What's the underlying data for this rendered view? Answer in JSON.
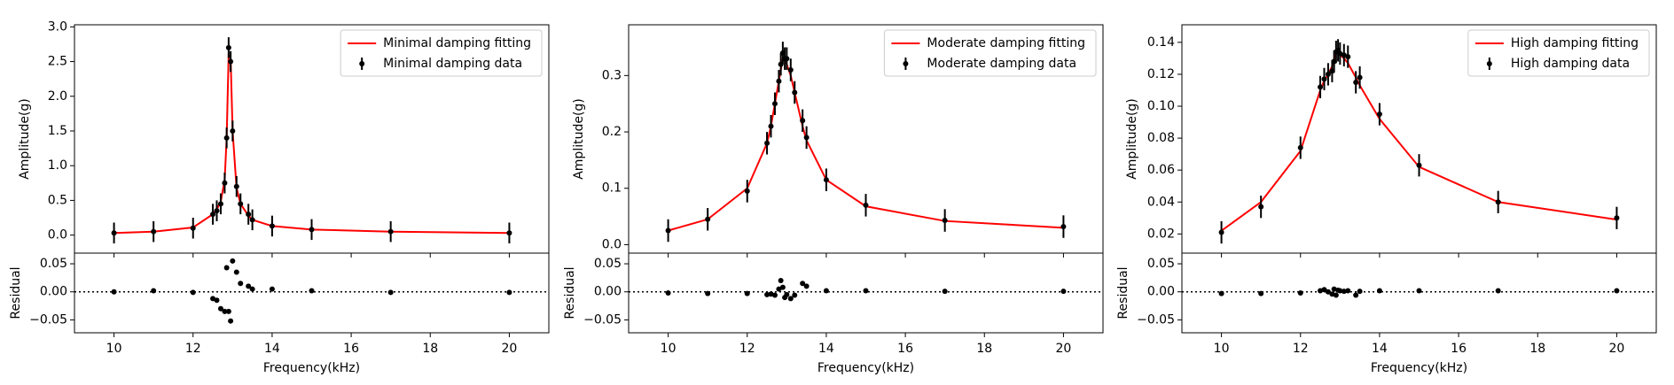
{
  "chart_data": [
    {
      "type": "errorbar",
      "xlabel": "Frequency(kHz)",
      "ylabel": "Amplitude(g)",
      "legend": "upper right",
      "x": [
        10,
        11,
        12,
        12.5,
        12.6,
        12.7,
        12.8,
        12.85,
        12.9,
        12.95,
        13.0,
        13.1,
        13.2,
        13.4,
        13.5,
        14,
        15,
        17,
        20
      ],
      "xlim": [
        9,
        21
      ],
      "xticks": [
        10,
        12,
        14,
        16,
        18,
        20
      ],
      "ylim": [
        -0.26,
        3.03
      ],
      "yticks": [
        {
          "value": 0,
          "label": "0.0"
        },
        {
          "value": 0.5,
          "label": "0.5"
        },
        {
          "value": 1,
          "label": "1.0"
        },
        {
          "value": 1.5,
          "label": "1.5"
        },
        {
          "value": 2,
          "label": "2.0"
        },
        {
          "value": 2.5,
          "label": "2.5"
        },
        {
          "value": 3,
          "label": "3.0"
        }
      ],
      "series": [
        {
          "name": "Minimal damping fitting",
          "color": "#ff0000",
          "values": [
            0.03,
            0.05,
            0.11,
            0.3,
            0.37,
            0.48,
            0.8,
            1.4,
            2.6,
            2.55,
            1.5,
            0.68,
            0.45,
            0.28,
            0.22,
            0.13,
            0.08,
            0.05,
            0.03
          ]
        },
        {
          "name": "Minimal damping data",
          "color": "#000000",
          "values": [
            0.03,
            0.05,
            0.1,
            0.3,
            0.35,
            0.45,
            0.75,
            1.4,
            2.7,
            2.5,
            1.5,
            0.7,
            0.45,
            0.3,
            0.22,
            0.13,
            0.08,
            0.05,
            0.03
          ],
          "errors": [
            0.15,
            0.15,
            0.15,
            0.15,
            0.15,
            0.15,
            0.15,
            0.15,
            0.15,
            0.15,
            0.15,
            0.15,
            0.15,
            0.15,
            0.15,
            0.15,
            0.15,
            0.15,
            0.15
          ]
        }
      ],
      "residual": {
        "ylabel": "Residual",
        "ylim": [
          -0.073,
          0.069
        ],
        "yticks": [
          {
            "value": -0.05,
            "label": "−0.05"
          },
          {
            "value": 0,
            "label": "0.00"
          },
          {
            "value": 0.05,
            "label": "0.05"
          }
        ],
        "values": [
          0,
          0.002,
          -0.001,
          -0.012,
          -0.015,
          -0.03,
          -0.035,
          0.043,
          -0.035,
          -0.052,
          0.055,
          0.035,
          0.015,
          0.01,
          0.005,
          0.005,
          0.002,
          -0.001,
          -0.001
        ]
      }
    },
    {
      "type": "errorbar",
      "xlabel": "Frequency(kHz)",
      "ylabel": "Amplitude(g)",
      "legend": "upper right",
      "x": [
        10,
        11,
        12,
        12.5,
        12.6,
        12.7,
        12.8,
        12.85,
        12.9,
        12.95,
        13.0,
        13.1,
        13.2,
        13.4,
        13.5,
        14,
        15,
        17,
        20
      ],
      "xlim": [
        9,
        21
      ],
      "xticks": [
        10,
        12,
        14,
        16,
        18,
        20
      ],
      "ylim": [
        -0.015,
        0.39
      ],
      "yticks": [
        {
          "value": 0,
          "label": "0.0"
        },
        {
          "value": 0.1,
          "label": "0.1"
        },
        {
          "value": 0.2,
          "label": "0.2"
        },
        {
          "value": 0.3,
          "label": "0.3"
        }
      ],
      "series": [
        {
          "name": "Moderate damping fitting",
          "color": "#ff0000",
          "values": [
            0.025,
            0.045,
            0.1,
            0.18,
            0.21,
            0.25,
            0.29,
            0.31,
            0.33,
            0.33,
            0.32,
            0.3,
            0.27,
            0.21,
            0.185,
            0.115,
            0.068,
            0.042,
            0.03
          ]
        },
        {
          "name": "Moderate damping data",
          "color": "#000000",
          "values": [
            0.025,
            0.045,
            0.095,
            0.18,
            0.21,
            0.25,
            0.29,
            0.32,
            0.34,
            0.33,
            0.33,
            0.31,
            0.27,
            0.22,
            0.19,
            0.115,
            0.07,
            0.043,
            0.032
          ],
          "errors": [
            0.02,
            0.02,
            0.02,
            0.02,
            0.02,
            0.02,
            0.02,
            0.02,
            0.02,
            0.02,
            0.02,
            0.02,
            0.02,
            0.02,
            0.02,
            0.02,
            0.02,
            0.02,
            0.02
          ]
        }
      ],
      "residual": {
        "ylabel": "Residual",
        "ylim": [
          -0.073,
          0.069
        ],
        "yticks": [
          {
            "value": -0.05,
            "label": "−0.05"
          },
          {
            "value": 0,
            "label": "0.00"
          },
          {
            "value": 0.05,
            "label": "0.05"
          }
        ],
        "values": [
          -0.002,
          -0.003,
          -0.003,
          -0.005,
          -0.004,
          -0.006,
          0.005,
          0.02,
          0.008,
          -0.01,
          -0.005,
          -0.012,
          -0.006,
          0.015,
          0.01,
          0.002,
          0.002,
          0.001,
          0.001
        ]
      }
    },
    {
      "type": "errorbar",
      "xlabel": "Frequency(kHz)",
      "ylabel": "Amplitude(g)",
      "legend": "upper right",
      "x": [
        10,
        11,
        12,
        12.5,
        12.6,
        12.7,
        12.8,
        12.85,
        12.9,
        12.95,
        13.0,
        13.1,
        13.2,
        13.4,
        13.5,
        14,
        15,
        17,
        20
      ],
      "xlim": [
        9,
        21
      ],
      "xticks": [
        10,
        12,
        14,
        16,
        18,
        20
      ],
      "ylim": [
        0.008,
        0.151
      ],
      "yticks": [
        {
          "value": 0.02,
          "label": "0.02"
        },
        {
          "value": 0.04,
          "label": "0.04"
        },
        {
          "value": 0.06,
          "label": "0.06"
        },
        {
          "value": 0.08,
          "label": "0.08"
        },
        {
          "value": 0.1,
          "label": "0.10"
        },
        {
          "value": 0.12,
          "label": "0.12"
        },
        {
          "value": 0.14,
          "label": "0.14"
        }
      ],
      "series": [
        {
          "name": "High damping fitting",
          "color": "#ff0000",
          "values": [
            0.022,
            0.04,
            0.072,
            0.11,
            0.116,
            0.12,
            0.125,
            0.13,
            0.133,
            0.133,
            0.132,
            0.13,
            0.127,
            0.118,
            0.113,
            0.092,
            0.062,
            0.04,
            0.029
          ]
        },
        {
          "name": "High damping data",
          "color": "#000000",
          "values": [
            0.021,
            0.037,
            0.074,
            0.112,
            0.117,
            0.12,
            0.122,
            0.128,
            0.134,
            0.135,
            0.133,
            0.132,
            0.131,
            0.115,
            0.118,
            0.095,
            0.063,
            0.04,
            0.03
          ],
          "errors": [
            0.007,
            0.007,
            0.007,
            0.007,
            0.007,
            0.007,
            0.007,
            0.007,
            0.007,
            0.007,
            0.007,
            0.007,
            0.007,
            0.007,
            0.007,
            0.007,
            0.007,
            0.007,
            0.007
          ]
        }
      ],
      "residual": {
        "ylabel": "Residual",
        "ylim": [
          -0.073,
          0.069
        ],
        "yticks": [
          {
            "value": -0.05,
            "label": "−0.05"
          },
          {
            "value": 0,
            "label": "0.00"
          },
          {
            "value": 0.05,
            "label": "0.05"
          }
        ],
        "values": [
          -0.003,
          -0.003,
          -0.002,
          0.002,
          0.004,
          0,
          -0.004,
          0.005,
          -0.006,
          0.003,
          0.002,
          0.001,
          0.002,
          -0.006,
          0.001,
          0.002,
          0.002,
          0.002,
          0.002
        ]
      }
    }
  ]
}
